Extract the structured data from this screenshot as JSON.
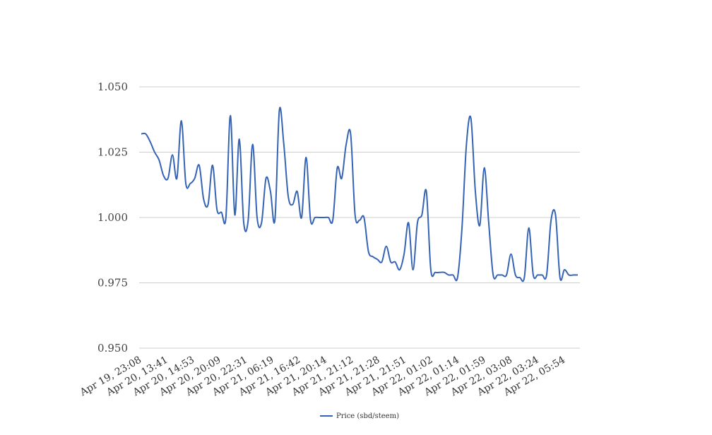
{
  "chart_data": {
    "type": "line",
    "title": "",
    "xlabel": "",
    "ylabel": "",
    "ylim": [
      0.95,
      1.05
    ],
    "grid": true,
    "legend_position": "bottom",
    "y_ticks": [
      "1.050",
      "1.025",
      "1.000",
      "0.975",
      "0.950"
    ],
    "x_tick_labels": [
      "Apr 19, 23:08",
      "Apr 20, 13:41",
      "Apr 20, 14:53",
      "Apr 20, 20:09",
      "Apr 20, 22:31",
      "Apr 21, 06:19",
      "Apr 21, 16:42",
      "Apr 21, 20:14",
      "Apr 21, 21:12",
      "Apr 21, 21:28",
      "Apr 21, 21:51",
      "Apr 22, 01:02",
      "Apr 22, 01:14",
      "Apr 22, 01:59",
      "Apr 22, 03:08",
      "Apr 22, 03:24",
      "Apr 22, 05:54"
    ],
    "series": [
      {
        "name": "Price (sbd/steem)",
        "color": "#3563b5",
        "values": [
          1.032,
          1.032,
          1.029,
          1.025,
          1.022,
          1.016,
          1.015,
          1.024,
          1.015,
          1.037,
          1.013,
          1.013,
          1.015,
          1.02,
          1.007,
          1.005,
          1.02,
          1.003,
          1.002,
          1.0,
          1.039,
          1.001,
          1.03,
          0.998,
          0.999,
          1.028,
          1.0,
          0.998,
          1.015,
          1.01,
          0.999,
          1.041,
          1.028,
          1.008,
          1.005,
          1.01,
          1.0,
          1.023,
          0.999,
          1.0,
          1.0,
          1.0,
          1.0,
          0.999,
          1.019,
          1.015,
          1.028,
          1.032,
          1.001,
          0.999,
          1.0,
          0.987,
          0.985,
          0.984,
          0.983,
          0.989,
          0.983,
          0.983,
          0.98,
          0.986,
          0.998,
          0.98,
          0.998,
          1.001,
          1.01,
          0.98,
          0.979,
          0.979,
          0.979,
          0.978,
          0.978,
          0.977,
          0.996,
          1.028,
          1.038,
          1.01,
          0.997,
          1.019,
          0.998,
          0.978,
          0.978,
          0.978,
          0.978,
          0.986,
          0.978,
          0.977,
          0.977,
          0.996,
          0.978,
          0.978,
          0.978,
          0.978,
          0.999,
          1.001,
          0.977,
          0.98,
          0.978,
          0.978,
          0.978
        ]
      }
    ]
  }
}
